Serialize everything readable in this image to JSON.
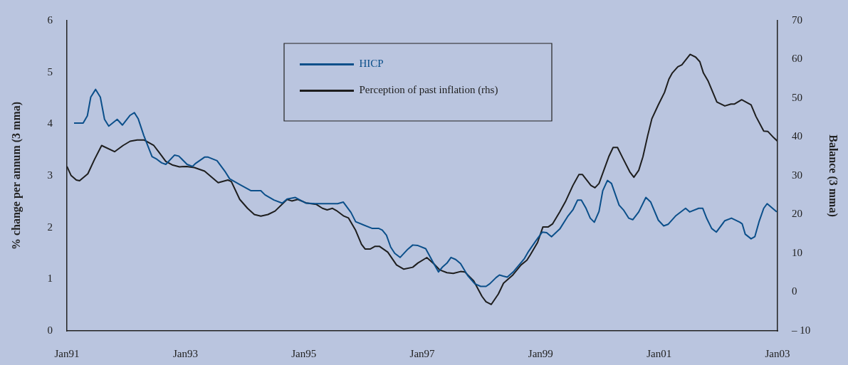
{
  "chart_data": {
    "type": "line",
    "ylabel": "% change per annum (3 mma)",
    "y2label": "Balance (3 mma)",
    "legend": "top",
    "marker": "none",
    "xlim": [
      "1991-01",
      "2003-01"
    ],
    "xticks": [
      {
        "value": "1991-01",
        "label": "Jan91"
      },
      {
        "value": "1993-01",
        "label": "Jan93"
      },
      {
        "value": "1995-01",
        "label": "Jan95"
      },
      {
        "value": "1997-01",
        "label": "Jan97"
      },
      {
        "value": "1999-01",
        "label": "Jan99"
      },
      {
        "value": "2001-01",
        "label": "Jan01"
      },
      {
        "value": "2003-01",
        "label": "Jan03"
      }
    ],
    "ylim": [
      0,
      6
    ],
    "yticks": [
      0,
      1,
      2,
      3,
      4,
      5,
      6
    ],
    "y2lim": [
      -10,
      70
    ],
    "y2ticks": [
      {
        "value": -10,
        "label": "– 10"
      },
      0,
      10,
      20,
      30,
      40,
      50,
      60,
      70
    ],
    "series": [
      {
        "name": "HICP",
        "color": "#0b4f8a",
        "x": [
          "1991-02-14",
          "1991-04-11",
          "1991-05-07",
          "1991-05-28",
          "1991-06-27",
          "1991-07-26",
          "1991-08-21",
          "1991-09-16",
          "1991-11-07",
          "1991-12-09",
          "1992-01-26",
          "1992-02-21",
          "1992-03-16",
          "1992-04-19",
          "1992-06-09",
          "1992-07-08",
          "1992-08-07",
          "1992-09-02",
          "1992-10-26",
          "1992-11-21",
          "1993-01-11",
          "1993-02-14",
          "1993-03-05",
          "1993-04-29",
          "1993-05-21",
          "1993-07-15",
          "1993-09-05",
          "1993-10-01",
          "1993-12-02",
          "1994-02-10",
          "1994-04-11",
          "1994-05-07",
          "1994-07-01",
          "1994-08-21",
          "1994-09-20",
          "1994-11-10",
          "1995-01-15",
          "1995-03-13",
          "1995-07-29",
          "1995-09-02",
          "1995-10-19",
          "1995-11-17",
          "1996-02-28",
          "1996-04-08",
          "1996-04-29",
          "1996-05-25",
          "1996-06-20",
          "1996-07-15",
          "1996-08-17",
          "1996-10-04",
          "1996-11-03",
          "1996-12-05",
          "1997-01-22",
          "1997-03-13",
          "1997-04-11",
          "1997-05-07",
          "1997-06-02",
          "1997-06-27",
          "1997-07-26",
          "1997-08-25",
          "1997-10-08",
          "1997-11-21",
          "1997-12-27",
          "1998-01-29",
          "1998-02-21",
          "1998-04-01",
          "1998-04-22",
          "1998-05-14",
          "1998-06-09",
          "1998-07-19",
          "1998-09-23",
          "1998-10-19",
          "1998-12-02",
          "1999-01-11",
          "1999-02-07",
          "1999-03-09",
          "1999-04-29",
          "1999-06-16",
          "1999-07-19",
          "1999-08-17",
          "1999-09-09",
          "1999-10-08",
          "1999-11-03",
          "1999-11-28",
          "1999-12-27",
          "2000-01-19",
          "2000-02-17",
          "2000-03-13",
          "2000-04-29",
          "2000-05-28",
          "2000-06-27",
          "2000-07-22",
          "2000-08-28",
          "2000-10-11",
          "2000-11-10",
          "2000-12-27",
          "2001-01-29",
          "2001-02-25",
          "2001-04-15",
          "2001-06-13",
          "2001-07-08",
          "2001-09-02",
          "2001-09-27",
          "2001-10-22",
          "2001-11-21",
          "2001-12-20",
          "2002-02-10",
          "2002-03-23",
          "2002-05-14",
          "2002-05-28",
          "2002-06-16",
          "2002-07-22",
          "2002-08-14",
          "2002-09-09",
          "2002-10-08",
          "2002-10-29",
          "2002-12-27"
        ],
        "values": [
          4.02,
          4.02,
          4.16,
          4.52,
          4.67,
          4.52,
          4.09,
          3.96,
          4.09,
          3.98,
          4.17,
          4.22,
          4.1,
          3.78,
          3.37,
          3.32,
          3.25,
          3.22,
          3.4,
          3.38,
          3.22,
          3.18,
          3.24,
          3.36,
          3.36,
          3.29,
          3.07,
          2.94,
          2.83,
          2.71,
          2.71,
          2.63,
          2.53,
          2.47,
          2.55,
          2.58,
          2.47,
          2.46,
          2.46,
          2.49,
          2.29,
          2.11,
          1.98,
          1.98,
          1.95,
          1.85,
          1.62,
          1.5,
          1.42,
          1.58,
          1.66,
          1.65,
          1.59,
          1.3,
          1.14,
          1.24,
          1.31,
          1.42,
          1.38,
          1.3,
          1.07,
          0.91,
          0.86,
          0.86,
          0.91,
          1.03,
          1.08,
          1.06,
          1.04,
          1.15,
          1.4,
          1.54,
          1.74,
          1.91,
          1.9,
          1.82,
          1.97,
          2.21,
          2.34,
          2.53,
          2.53,
          2.37,
          2.18,
          2.1,
          2.31,
          2.71,
          2.91,
          2.85,
          2.43,
          2.33,
          2.18,
          2.15,
          2.3,
          2.58,
          2.49,
          2.14,
          2.03,
          2.06,
          2.23,
          2.37,
          2.3,
          2.37,
          2.37,
          2.17,
          1.98,
          1.91,
          2.13,
          2.18,
          2.1,
          2.07,
          1.87,
          1.78,
          1.82,
          2.11,
          2.37,
          2.46,
          2.3
        ]
      },
      {
        "name": "Perception of past inflation (rhs)",
        "color": "#1e1e1e",
        "axis": "y2",
        "x": [
          "1991-01-01",
          "1991-01-26",
          "1991-02-28",
          "1991-03-20",
          "1991-05-10",
          "1991-06-20",
          "1991-08-03",
          "1991-10-22",
          "1991-12-13",
          "1992-01-26",
          "1992-03-09",
          "1992-04-22",
          "1992-06-20",
          "1992-07-19",
          "1992-09-02",
          "1992-10-11",
          "1992-11-25",
          "1993-01-08",
          "1993-02-25",
          "1993-04-29",
          "1993-07-22",
          "1993-09-20",
          "1993-10-11",
          "1993-12-02",
          "1994-01-19",
          "1994-03-02",
          "1994-04-11",
          "1994-05-25",
          "1994-07-08",
          "1994-09-20",
          "1994-10-19",
          "1994-11-25",
          "1995-01-15",
          "1995-03-20",
          "1995-04-26",
          "1995-05-25",
          "1995-06-27",
          "1995-07-22",
          "1995-09-05",
          "1995-10-04",
          "1995-11-17",
          "1995-12-23",
          "1996-01-15",
          "1996-02-14",
          "1996-03-16",
          "1996-04-11",
          "1996-06-02",
          "1996-07-26",
          "1996-09-09",
          "1996-11-03",
          "1996-12-05",
          "1997-01-29",
          "1997-03-13",
          "1997-04-19",
          "1997-06-02",
          "1997-07-11",
          "1997-08-25",
          "1997-09-20",
          "1997-11-14",
          "1998-01-04",
          "1998-01-29",
          "1998-03-02",
          "1998-04-15",
          "1998-05-17",
          "1998-07-11",
          "1998-09-02",
          "1998-10-08",
          "1998-10-29",
          "1998-12-13",
          "1999-01-15",
          "1999-02-17",
          "1999-03-16",
          "1999-04-29",
          "1999-06-05",
          "1999-07-19",
          "1999-08-25",
          "1999-09-16",
          "1999-11-07",
          "1999-12-02",
          "1999-12-27",
          "2000-02-25",
          "2000-03-23",
          "2000-04-19",
          "2000-05-21",
          "2000-07-04",
          "2000-07-29",
          "2000-08-28",
          "2000-09-23",
          "2000-10-22",
          "2000-11-17",
          "2000-12-27",
          "2001-02-03",
          "2001-03-02",
          "2001-03-23",
          "2001-04-26",
          "2001-05-21",
          "2001-07-11",
          "2001-08-14",
          "2001-09-09",
          "2001-10-01",
          "2001-10-29",
          "2001-12-23",
          "2002-02-10",
          "2002-03-20",
          "2002-04-11",
          "2002-05-25",
          "2002-07-22",
          "2002-08-21",
          "2002-10-08",
          "2002-11-03",
          "2002-12-09",
          "2003-01-01"
        ],
        "values": [
          32.4,
          30.1,
          28.9,
          28.7,
          30.5,
          34.2,
          37.8,
          36.2,
          37.8,
          38.9,
          39.2,
          39.2,
          37.8,
          36.2,
          33.7,
          32.8,
          32.3,
          32.4,
          32.1,
          31.2,
          28.2,
          28.9,
          28.5,
          23.9,
          21.6,
          20.0,
          19.6,
          20.0,
          20.9,
          23.9,
          23.5,
          23.9,
          23.0,
          22.6,
          21.6,
          21.2,
          21.6,
          21.0,
          19.6,
          19.1,
          15.9,
          12.3,
          11.1,
          11.1,
          11.8,
          11.8,
          10.3,
          7.0,
          5.9,
          6.4,
          7.5,
          8.9,
          7.3,
          5.7,
          5.0,
          4.8,
          5.3,
          5.2,
          2.9,
          -1.1,
          -2.5,
          -3.2,
          -0.5,
          2.3,
          4.3,
          7.0,
          8.2,
          9.6,
          12.8,
          16.8,
          16.8,
          17.6,
          20.7,
          23.5,
          27.5,
          30.3,
          30.3,
          27.5,
          26.9,
          28.0,
          34.9,
          37.3,
          37.3,
          34.6,
          31.0,
          29.6,
          31.4,
          34.9,
          40.3,
          44.7,
          48.3,
          51.5,
          54.9,
          56.5,
          58.1,
          58.6,
          61.3,
          60.6,
          59.4,
          56.5,
          54.5,
          49.0,
          48.0,
          48.5,
          48.5,
          49.6,
          48.3,
          45.3,
          41.5,
          41.4,
          39.8,
          38.9
        ]
      }
    ]
  }
}
